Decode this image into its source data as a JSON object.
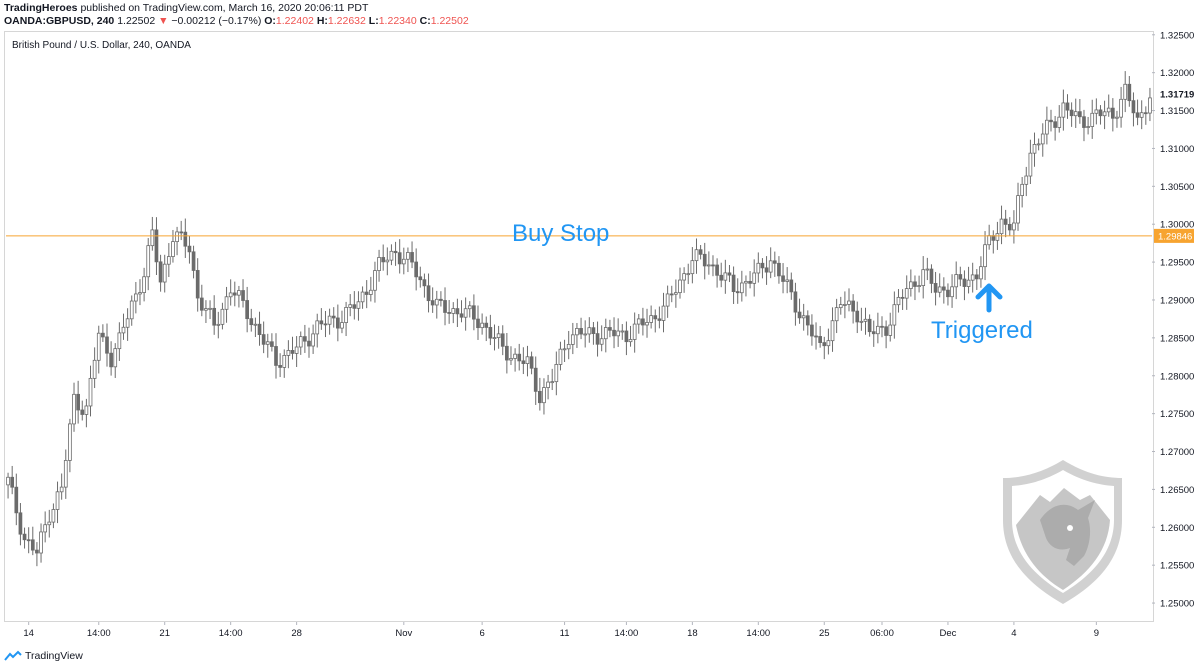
{
  "header": {
    "line1_author": "TradingHeroes",
    "line1_rest": "published on TradingView.com, March 16, 2020 20:06:11 PDT",
    "symbol": "OANDA:GBPUSD, 240",
    "last": "1.22502",
    "change_arrow": "▼",
    "change": "−0.00212 (−0.17%)",
    "o_label": "O:",
    "o": "1.22402",
    "h_label": "H:",
    "h": "1.22632",
    "l_label": "L:",
    "l": "1.22340",
    "c_label": "C:",
    "c": "1.22502"
  },
  "pane_title": "British Pound / U.S. Dollar, 240, OANDA",
  "annotations": {
    "buy_stop": "Buy Stop",
    "triggered": "Triggered"
  },
  "footer": {
    "brand": "TradingView"
  },
  "colors": {
    "line": "#f7a430",
    "annotation": "#2196f3",
    "candle": "#6b6b6b",
    "price_tag": "#f7a430",
    "header_red": "#ef5350"
  },
  "icons": {
    "triggered_arrow": "arrow-up-icon",
    "logo": "shield-bull-logo",
    "footer_logo": "tradingview-logo-icon"
  },
  "chart_data": {
    "type": "candlestick",
    "title": "British Pound / U.S. Dollar, 240, OANDA",
    "ylim": [
      1.2475,
      1.3255
    ],
    "y_ticks": [
      "1.32500",
      "1.32000",
      "1.31500",
      "1.31000",
      "1.30500",
      "1.30000",
      "1.29500",
      "1.29000",
      "1.28500",
      "1.28000",
      "1.27500",
      "1.27000",
      "1.26500",
      "1.26000",
      "1.25500",
      "1.25000"
    ],
    "x_ticks": [
      "14",
      "14:00",
      "21",
      "14:00",
      "28",
      "Nov",
      "6",
      "11",
      "14:00",
      "18",
      "14:00",
      "25",
      "06:00",
      "Dec",
      "4",
      "9"
    ],
    "x_tick_index": [
      5,
      22,
      38,
      54,
      70,
      96,
      115,
      135,
      150,
      166,
      182,
      198,
      212,
      228,
      244,
      264
    ],
    "n_candles": 278,
    "horizontal_line": {
      "value": 1.29846,
      "label": "1.29846"
    },
    "last_price": {
      "value": 1.31719,
      "label": "1.31719"
    },
    "anchors": [
      [
        0,
        1.266
      ],
      [
        4,
        1.2585
      ],
      [
        7,
        1.2565
      ],
      [
        10,
        1.262
      ],
      [
        13,
        1.265
      ],
      [
        16,
        1.277
      ],
      [
        19,
        1.2755
      ],
      [
        22,
        1.2855
      ],
      [
        25,
        1.2825
      ],
      [
        27,
        1.2845
      ],
      [
        30,
        1.2895
      ],
      [
        33,
        1.2935
      ],
      [
        35,
        1.2985
      ],
      [
        37,
        1.2925
      ],
      [
        40,
        1.2985
      ],
      [
        44,
        1.297
      ],
      [
        46,
        1.2905
      ],
      [
        50,
        1.2865
      ],
      [
        54,
        1.2915
      ],
      [
        58,
        1.2885
      ],
      [
        62,
        1.2845
      ],
      [
        65,
        1.282
      ],
      [
        70,
        1.2835
      ],
      [
        75,
        1.2865
      ],
      [
        80,
        1.2875
      ],
      [
        85,
        1.2895
      ],
      [
        90,
        1.2945
      ],
      [
        94,
        1.2965
      ],
      [
        98,
        1.2945
      ],
      [
        104,
        1.289
      ],
      [
        110,
        1.2885
      ],
      [
        115,
        1.287
      ],
      [
        120,
        1.2835
      ],
      [
        126,
        1.2815
      ],
      [
        129,
        1.2775
      ],
      [
        132,
        1.2795
      ],
      [
        136,
        1.2855
      ],
      [
        142,
        1.2855
      ],
      [
        150,
        1.2855
      ],
      [
        156,
        1.2875
      ],
      [
        160,
        1.2895
      ],
      [
        166,
        1.2955
      ],
      [
        170,
        1.295
      ],
      [
        176,
        1.2915
      ],
      [
        182,
        1.2935
      ],
      [
        185,
        1.2955
      ],
      [
        190,
        1.2905
      ],
      [
        195,
        1.2855
      ],
      [
        197,
        1.2835
      ],
      [
        202,
        1.2895
      ],
      [
        206,
        1.2885
      ],
      [
        209,
        1.2855
      ],
      [
        213,
        1.2865
      ],
      [
        218,
        1.2915
      ],
      [
        222,
        1.2935
      ],
      [
        225,
        1.2915
      ],
      [
        228,
        1.2915
      ],
      [
        232,
        1.2925
      ],
      [
        235,
        1.2935
      ],
      [
        238,
        1.2975
      ],
      [
        241,
        1.3005
      ],
      [
        244,
        1.2995
      ],
      [
        246,
        1.3055
      ],
      [
        248,
        1.3095
      ],
      [
        252,
        1.3125
      ],
      [
        256,
        1.3155
      ],
      [
        260,
        1.3135
      ],
      [
        264,
        1.3145
      ],
      [
        268,
        1.3145
      ],
      [
        271,
        1.3175
      ],
      [
        274,
        1.3135
      ],
      [
        277,
        1.3172
      ]
    ]
  }
}
